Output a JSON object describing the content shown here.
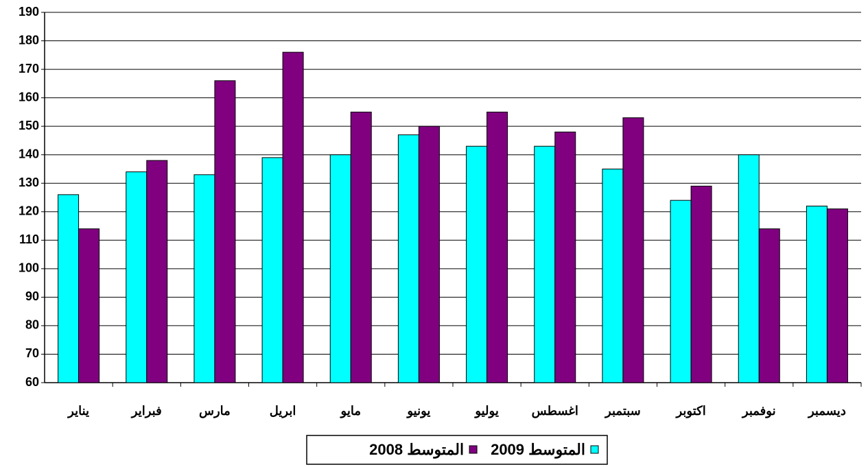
{
  "chart_data": {
    "type": "bar",
    "categories": [
      "يناير",
      "فبراير",
      "مارس",
      "ابريل",
      "مايو",
      "يونيو",
      "يوليو",
      "اغسطس",
      "سبتمبر",
      "اكتوبر",
      "نوفمبر",
      "ديسمبر"
    ],
    "series": [
      {
        "name": "المتوسط 2009",
        "color": "#00ffff",
        "values": [
          126,
          134,
          133,
          139,
          140,
          147,
          143,
          143,
          135,
          124,
          140,
          122
        ]
      },
      {
        "name": "المتوسط 2008",
        "color": "#800080",
        "values": [
          114,
          138,
          166,
          176,
          155,
          150,
          155,
          148,
          153,
          129,
          114,
          121
        ]
      }
    ],
    "ylim": [
      60,
      190
    ],
    "yticks": [
      60,
      70,
      80,
      90,
      100,
      110,
      120,
      130,
      140,
      150,
      160,
      170,
      180,
      190
    ],
    "grid": true,
    "legend": "bottom"
  }
}
